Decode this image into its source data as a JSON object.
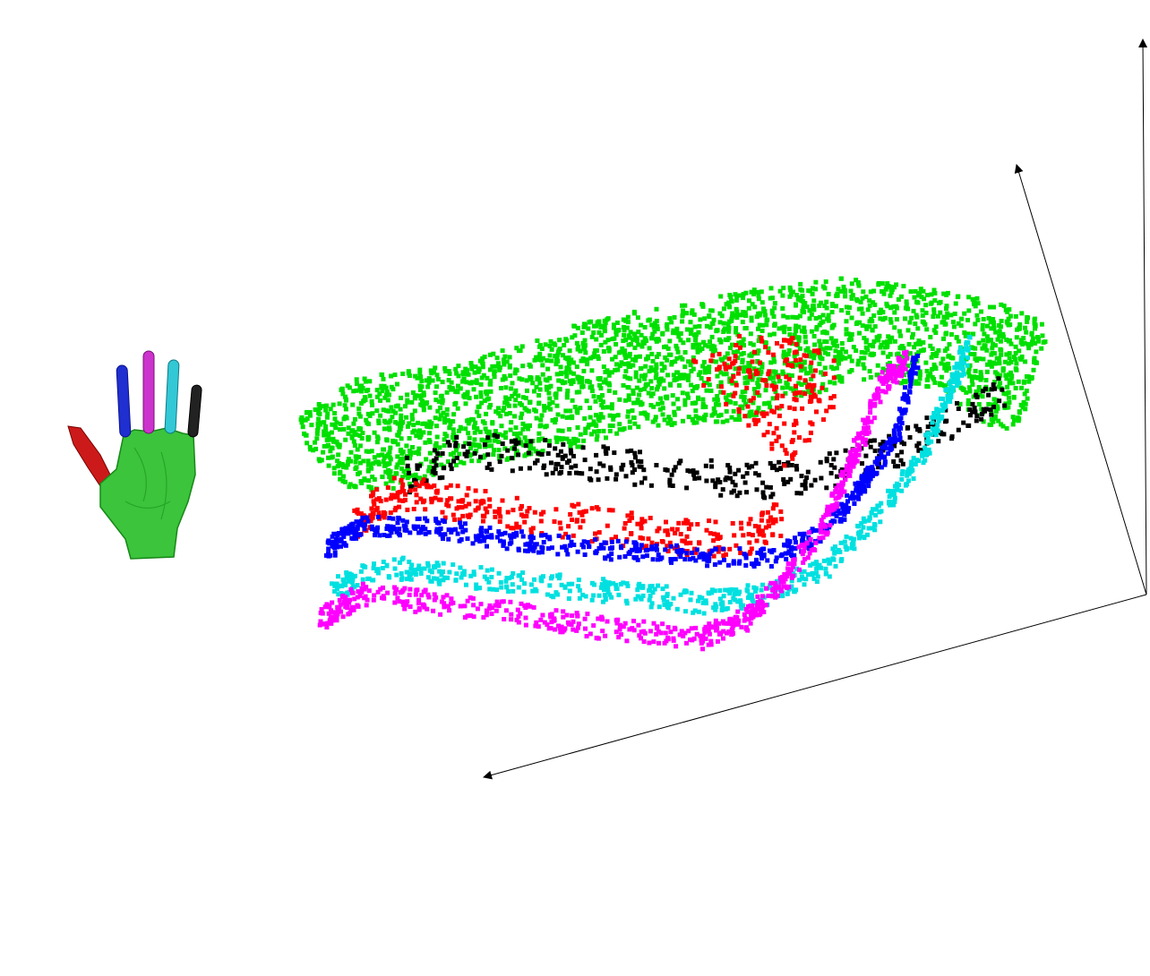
{
  "segments": [
    {
      "name": "palm",
      "color": "#00e000"
    },
    {
      "name": "thumb",
      "color": "#ff0000"
    },
    {
      "name": "index-finger",
      "color": "#0000ff"
    },
    {
      "name": "middle-finger",
      "color": "#ff00ff"
    },
    {
      "name": "ring-finger",
      "color": "#00e0e0"
    },
    {
      "name": "little-finger",
      "color": "#000000"
    }
  ],
  "axes": [
    {
      "name": "axis-1"
    },
    {
      "name": "axis-2"
    },
    {
      "name": "axis-3"
    }
  ],
  "hand_icon": "hand-model-icon"
}
